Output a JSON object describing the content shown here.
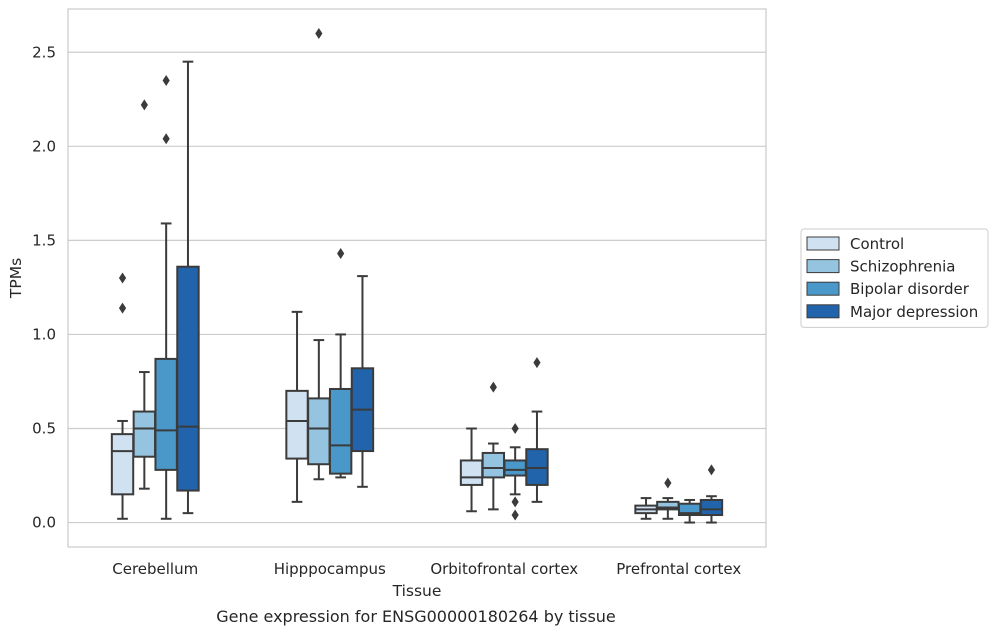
{
  "chart_data": {
    "type": "boxplot",
    "title": "",
    "caption": "Gene expression for ENSG00000180264 by tissue",
    "xlabel": "Tissue",
    "ylabel": "TPMs",
    "ylim": [
      -0.13,
      2.73
    ],
    "yticks": [
      0.0,
      0.5,
      1.0,
      1.5,
      2.0,
      2.5
    ],
    "ytick_labels": [
      "0.0",
      "0.5",
      "1.0",
      "1.5",
      "2.0",
      "2.5"
    ],
    "grid": "horizontal",
    "legend_position": "right",
    "categories": [
      "Cerebellum",
      "Hipppocampus",
      "Orbitofrontal cortex",
      "Prefrontal cortex"
    ],
    "series": [
      {
        "name": "Control",
        "color": "#d0e1f2",
        "boxes": [
          {
            "whislo": 0.02,
            "q1": 0.15,
            "med": 0.38,
            "q3": 0.47,
            "whishi": 0.54,
            "fliers": [
              1.14,
              1.3
            ]
          },
          {
            "whislo": 0.11,
            "q1": 0.34,
            "med": 0.54,
            "q3": 0.7,
            "whishi": 1.12,
            "fliers": []
          },
          {
            "whislo": 0.06,
            "q1": 0.2,
            "med": 0.24,
            "q3": 0.33,
            "whishi": 0.5,
            "fliers": []
          },
          {
            "whislo": 0.02,
            "q1": 0.05,
            "med": 0.07,
            "q3": 0.09,
            "whishi": 0.13,
            "fliers": []
          }
        ]
      },
      {
        "name": "Schizophrenia",
        "color": "#94c4df",
        "boxes": [
          {
            "whislo": 0.18,
            "q1": 0.35,
            "med": 0.5,
            "q3": 0.59,
            "whishi": 0.8,
            "fliers": [
              2.22
            ]
          },
          {
            "whislo": 0.23,
            "q1": 0.31,
            "med": 0.5,
            "q3": 0.66,
            "whishi": 0.97,
            "fliers": [
              2.6
            ]
          },
          {
            "whislo": 0.07,
            "q1": 0.24,
            "med": 0.29,
            "q3": 0.37,
            "whishi": 0.42,
            "fliers": [
              0.72
            ]
          },
          {
            "whislo": 0.02,
            "q1": 0.07,
            "med": 0.08,
            "q3": 0.11,
            "whishi": 0.13,
            "fliers": [
              0.21
            ]
          }
        ]
      },
      {
        "name": "Bipolar disorder",
        "color": "#4a98c9",
        "boxes": [
          {
            "whislo": 0.02,
            "q1": 0.28,
            "med": 0.49,
            "q3": 0.87,
            "whishi": 1.59,
            "fliers": [
              2.04,
              2.35
            ]
          },
          {
            "whislo": 0.24,
            "q1": 0.26,
            "med": 0.41,
            "q3": 0.71,
            "whishi": 1.0,
            "fliers": [
              1.43
            ]
          },
          {
            "whislo": 0.15,
            "q1": 0.25,
            "med": 0.28,
            "q3": 0.33,
            "whishi": 0.4,
            "fliers": [
              0.04,
              0.11,
              0.5
            ]
          },
          {
            "whislo": 0.0,
            "q1": 0.04,
            "med": 0.05,
            "q3": 0.1,
            "whishi": 0.12,
            "fliers": []
          }
        ]
      },
      {
        "name": "Major depression",
        "color": "#2164ab",
        "boxes": [
          {
            "whislo": 0.05,
            "q1": 0.17,
            "med": 0.51,
            "q3": 1.36,
            "whishi": 2.45,
            "fliers": []
          },
          {
            "whislo": 0.19,
            "q1": 0.38,
            "med": 0.6,
            "q3": 0.82,
            "whishi": 1.31,
            "fliers": []
          },
          {
            "whislo": 0.11,
            "q1": 0.2,
            "med": 0.29,
            "q3": 0.39,
            "whishi": 0.59,
            "fliers": [
              0.85
            ]
          },
          {
            "whislo": 0.0,
            "q1": 0.04,
            "med": 0.07,
            "q3": 0.12,
            "whishi": 0.14,
            "fliers": [
              0.28
            ]
          }
        ]
      }
    ]
  }
}
